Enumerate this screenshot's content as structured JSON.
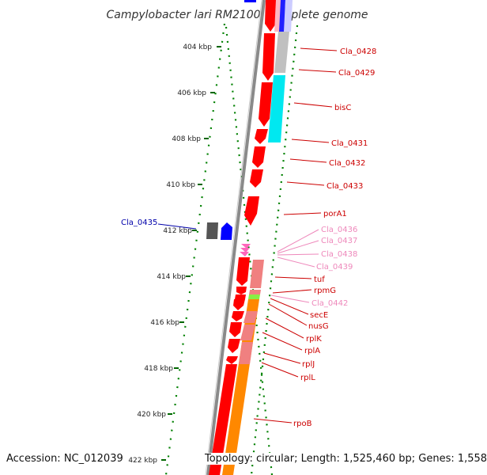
{
  "title": "Campylobacter lari RM2100, complete genome",
  "accession": "Accession: NC_012039",
  "topology": "Topology: circular; Length: 1,525,460 bp; Genes: 1,558",
  "colors": {
    "forward_cds": "#ff0000",
    "reverse_cds": "#0000ff",
    "label_dark_red": "#cc0000",
    "label_pink": "#ee88bb",
    "label_blue": "#0000aa",
    "tick_green": "#006600",
    "backbone": "#8a8a8a",
    "orange_band": "#ff8800",
    "cyan_band": "#00e5ee"
  },
  "ticks": [
    {
      "label": "404 kbp"
    },
    {
      "label": "406 kbp"
    },
    {
      "label": "408 kbp"
    },
    {
      "label": "410 kbp"
    },
    {
      "label": "412 kbp"
    },
    {
      "label": "414 kbp"
    },
    {
      "label": "416 kbp"
    },
    {
      "label": "418 kbp"
    },
    {
      "label": "420 kbp"
    },
    {
      "label": "422 kbp"
    }
  ],
  "genes": [
    {
      "label": "Cla_0428",
      "color": "#cc0000"
    },
    {
      "label": "Cla_0429",
      "color": "#cc0000"
    },
    {
      "label": "bisC",
      "color": "#cc0000"
    },
    {
      "label": "Cla_0431",
      "color": "#cc0000"
    },
    {
      "label": "Cla_0432",
      "color": "#cc0000"
    },
    {
      "label": "Cla_0433",
      "color": "#cc0000"
    },
    {
      "label": "porA1",
      "color": "#cc0000"
    },
    {
      "label": "Cla_0436",
      "color": "#ee88bb"
    },
    {
      "label": "Cla_0437",
      "color": "#ee88bb"
    },
    {
      "label": "Cla_0438",
      "color": "#ee88bb"
    },
    {
      "label": "Cla_0439",
      "color": "#ee88bb"
    },
    {
      "label": "tuf",
      "color": "#cc0000"
    },
    {
      "label": "rpmG",
      "color": "#cc0000"
    },
    {
      "label": "Cla_0442",
      "color": "#ee88bb"
    },
    {
      "label": "secE",
      "color": "#cc0000"
    },
    {
      "label": "nusG",
      "color": "#cc0000"
    },
    {
      "label": "rplK",
      "color": "#cc0000"
    },
    {
      "label": "rplA",
      "color": "#cc0000"
    },
    {
      "label": "rplJ",
      "color": "#cc0000"
    },
    {
      "label": "rplL",
      "color": "#cc0000"
    },
    {
      "label": "rpoB",
      "color": "#cc0000"
    },
    {
      "label": "Cla_0435",
      "color": "#0000aa"
    }
  ]
}
